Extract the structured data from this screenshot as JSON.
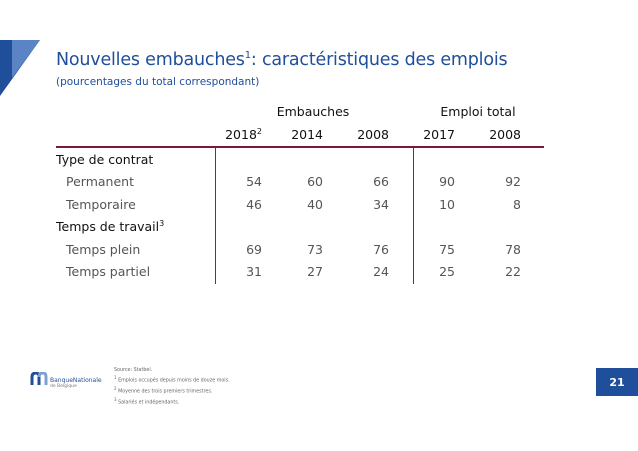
{
  "title": "Nouvelles embauches",
  "title_sup": "1",
  "title_rest": ": caractéristiques des emplois",
  "subtitle": "(pourcentages du total correspondant)",
  "table": {
    "groups": [
      "Embauches",
      "Emploi total"
    ],
    "years": [
      {
        "label": "2018",
        "sup": "2"
      },
      {
        "label": "2014",
        "sup": ""
      },
      {
        "label": "2008",
        "sup": ""
      },
      {
        "label": "2017",
        "sup": ""
      },
      {
        "label": "2008",
        "sup": ""
      }
    ],
    "sections": [
      {
        "label": "Type de contrat",
        "sup": "",
        "rows": [
          {
            "label": "Permanent",
            "values": [
              "54",
              "60",
              "66",
              "90",
              "92"
            ]
          },
          {
            "label": "Temporaire",
            "values": [
              "46",
              "40",
              "34",
              "10",
              "8"
            ]
          }
        ]
      },
      {
        "label": "Temps de travail",
        "sup": "3",
        "rows": [
          {
            "label": "Temps plein",
            "values": [
              "69",
              "73",
              "76",
              "75",
              "78"
            ]
          },
          {
            "label": "Temps partiel",
            "values": [
              "31",
              "27",
              "24",
              "25",
              "22"
            ]
          }
        ]
      }
    ]
  },
  "footer": {
    "source": "Source: Statbel.",
    "notes": [
      {
        "sup": "1",
        "text": "Emplois occupés depuis moins de douze mois."
      },
      {
        "sup": "2",
        "text": "Moyenne des trois premiers trimestres."
      },
      {
        "sup": "3",
        "text": "Salariés et indépendants."
      }
    ]
  },
  "logo": {
    "text": "BanqueNationale",
    "sub": "de Belgique"
  },
  "page_number": "21",
  "colors": {
    "accent": "#1f4e9a",
    "rule": "#7a1a3a"
  }
}
